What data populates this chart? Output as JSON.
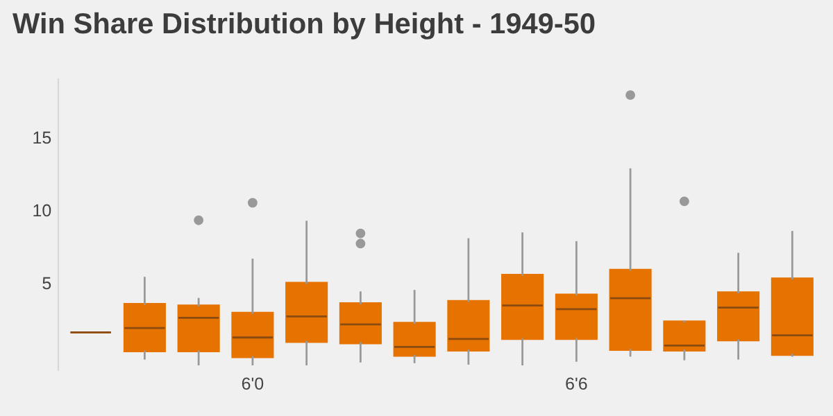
{
  "chart_data": {
    "type": "box",
    "title": "Win Share Distribution by Height - 1949-50",
    "categories": [
      null,
      null,
      null,
      "6'0",
      null,
      null,
      null,
      null,
      null,
      "6'6",
      null,
      null,
      null,
      null
    ],
    "color": "#e67300",
    "boxes": [
      {
        "low": 1.6,
        "q1": 1.6,
        "median": 1.6,
        "q3": 1.6,
        "high": 1.6
      },
      {
        "low": -0.2,
        "q1": 0.3,
        "median": 1.9,
        "q3": 3.55,
        "high": 5.35
      },
      {
        "low": -0.6,
        "q1": 0.3,
        "median": 2.6,
        "q3": 3.45,
        "high": 3.9,
        "outliers": [
          9.3
        ]
      },
      {
        "low": -0.6,
        "q1": -0.1,
        "median": 1.25,
        "q3": 2.95,
        "high": 6.6,
        "outliers": [
          10.5
        ]
      },
      {
        "low": -0.6,
        "q1": 0.95,
        "median": 2.7,
        "q3": 5.0,
        "high": 9.2
      },
      {
        "low": -0.4,
        "q1": 0.85,
        "median": 2.15,
        "q3": 3.6,
        "high": 4.35,
        "outliers": [
          8.4,
          7.7
        ]
      },
      {
        "low": -0.45,
        "q1": 0.0,
        "median": 0.6,
        "q3": 2.25,
        "high": 4.45
      },
      {
        "low": -0.55,
        "q1": 0.35,
        "median": 1.15,
        "q3": 3.75,
        "high": 8.0
      },
      {
        "low": -0.6,
        "q1": 1.15,
        "median": 3.45,
        "q3": 5.55,
        "high": 8.4
      },
      {
        "low": -0.35,
        "q1": 1.15,
        "median": 3.2,
        "q3": 4.2,
        "high": 7.8
      },
      {
        "low": 0.0,
        "q1": 0.4,
        "median": 3.95,
        "q3": 5.9,
        "high": 12.8,
        "outliers": [
          17.9
        ]
      },
      {
        "low": -0.25,
        "q1": 0.35,
        "median": 0.7,
        "q3": 2.35,
        "high": 2.35,
        "outliers": [
          10.6
        ]
      },
      {
        "low": -0.2,
        "q1": 1.05,
        "median": 3.3,
        "q3": 4.35,
        "high": 7.0
      },
      {
        "low": 0.0,
        "q1": 0.05,
        "median": 1.4,
        "q3": 5.3,
        "high": 8.5
      }
    ],
    "ylim": [
      -1,
      19
    ],
    "yticks": [
      5,
      10,
      15
    ],
    "grid": false
  }
}
